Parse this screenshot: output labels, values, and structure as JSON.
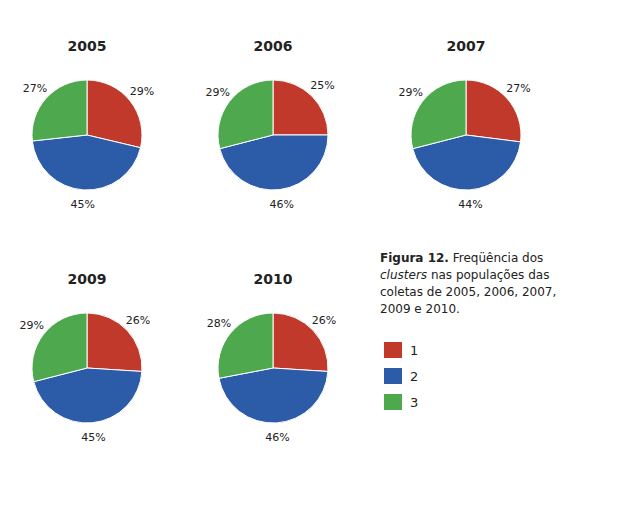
{
  "chart_data": [
    {
      "type": "pie",
      "title": "2005",
      "categories": [
        "1",
        "2",
        "3"
      ],
      "values": [
        29,
        45,
        27
      ],
      "value_labels": [
        "29%",
        "45%",
        "27%"
      ],
      "colors": [
        "#c0392b",
        "#2c5ca8",
        "#4ea84e"
      ],
      "data_labels": true,
      "legend": "right",
      "annotations": [
        "Figura  12.",
        "Freqüência dos",
        "clusters",
        "nas populações das",
        "coletas de 2005, 2006, 2007,",
        "2009 e 2010."
      ]
    },
    {
      "type": "pie",
      "title": "2006",
      "categories": [
        "1",
        "2",
        "3"
      ],
      "values": [
        25,
        46,
        29
      ],
      "value_labels": [
        "25%",
        "46%",
        "29%"
      ],
      "colors": [
        "#c0392b",
        "#2c5ca8",
        "#4ea84e"
      ],
      "data_labels": true
    },
    {
      "type": "pie",
      "title": "2007",
      "categories": [
        "1",
        "2",
        "3"
      ],
      "values": [
        27,
        44,
        29
      ],
      "value_labels": [
        "27%",
        "44%",
        "29%"
      ],
      "colors": [
        "#c0392b",
        "#2c5ca8",
        "#4ea84e"
      ],
      "data_labels": true
    },
    {
      "type": "pie",
      "title": "2009",
      "categories": [
        "1",
        "2",
        "3"
      ],
      "values": [
        26,
        45,
        29
      ],
      "value_labels": [
        "26%",
        "45%",
        "29%"
      ],
      "colors": [
        "#c0392b",
        "#2c5ca8",
        "#4ea84e"
      ],
      "data_labels": true
    },
    {
      "type": "pie",
      "title": "2010",
      "categories": [
        "1",
        "2",
        "3"
      ],
      "values": [
        26,
        46,
        28
      ],
      "value_labels": [
        "26%",
        "46%",
        "28%"
      ],
      "colors": [
        "#c0392b",
        "#2c5ca8",
        "#4ea84e"
      ],
      "data_labels": true
    }
  ]
}
